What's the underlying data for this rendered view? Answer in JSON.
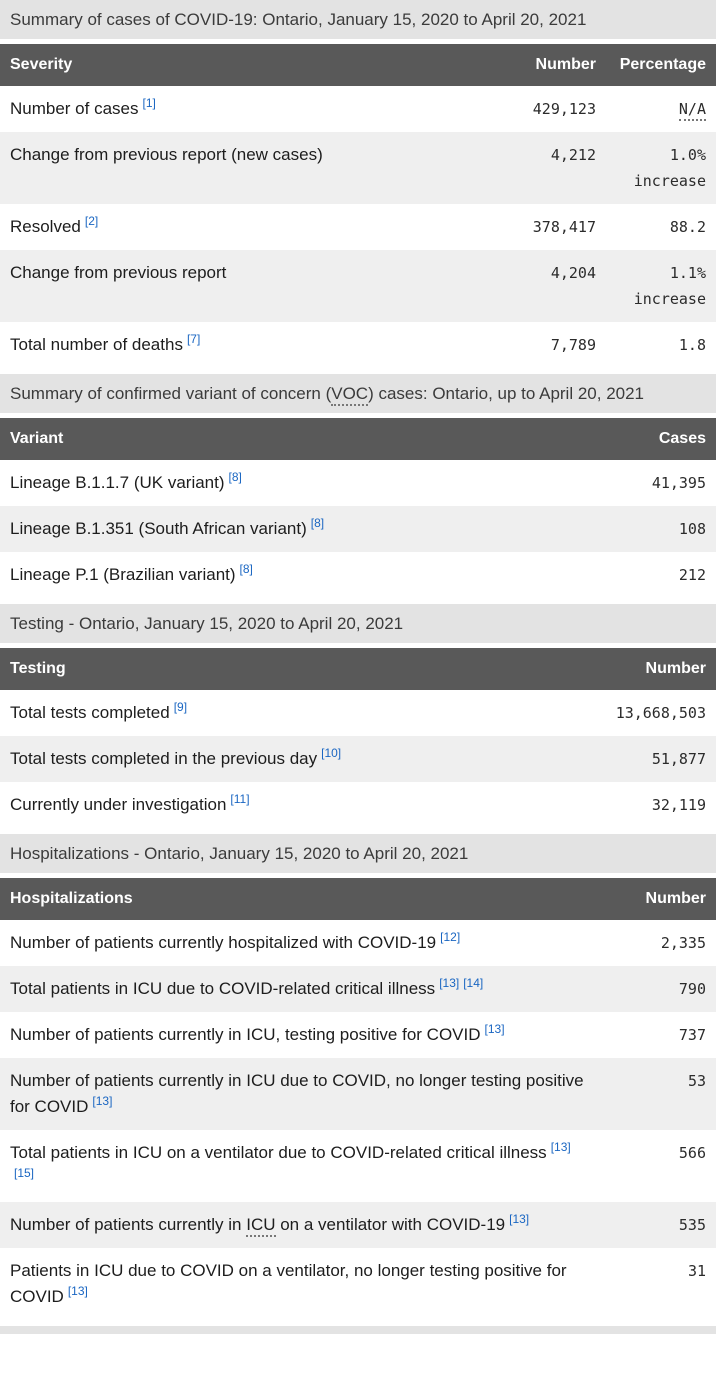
{
  "theme": {
    "header_bg": "#595959",
    "header_text": "#ffffff",
    "caption_bg": "#e3e3e3",
    "zebra_bg": "#efefef",
    "link": "#1a66c2"
  },
  "tables": [
    {
      "name": "cases-summary",
      "caption": [
        {
          "text": "Summary of cases of COVID-19: Ontario, January 15, 2020 to April 20, 2021"
        }
      ],
      "columns": [
        "Severity",
        "Number",
        "Percentage"
      ],
      "rows": [
        {
          "label": [
            {
              "text": "Number of cases"
            }
          ],
          "refs": [
            "[1]"
          ],
          "number": "429,123",
          "percentage": {
            "value": "N/A",
            "abbr": true
          }
        },
        {
          "label": [
            {
              "text": "Change from previous report (new cases)"
            }
          ],
          "refs": [],
          "number": "4,212",
          "percentage": {
            "value": "1.0%",
            "qualifier": "increase"
          }
        },
        {
          "label": [
            {
              "text": "Resolved"
            }
          ],
          "refs": [
            "[2]"
          ],
          "number": "378,417",
          "percentage": {
            "value": "88.2"
          }
        },
        {
          "label": [
            {
              "text": "Change from previous report"
            }
          ],
          "refs": [],
          "number": "4,204",
          "percentage": {
            "value": "1.1%",
            "qualifier": "increase"
          }
        },
        {
          "label": [
            {
              "text": "Total number of deaths"
            }
          ],
          "refs": [
            "[7]"
          ],
          "number": "7,789",
          "percentage": {
            "value": "1.8"
          }
        }
      ]
    },
    {
      "name": "voc-summary",
      "caption": [
        {
          "text": "Summary of confirmed variant of concern ("
        },
        {
          "text": "VOC",
          "abbr": true
        },
        {
          "text": ") cases: Ontario, up to April 20, 2021"
        }
      ],
      "columns": [
        "Variant",
        "Cases"
      ],
      "rows": [
        {
          "label": [
            {
              "text": "Lineage B.1.1.7 (UK variant)"
            }
          ],
          "refs": [
            "[8]"
          ],
          "number": "41,395"
        },
        {
          "label": [
            {
              "text": "Lineage B.1.351 (South African variant)"
            }
          ],
          "refs": [
            "[8]"
          ],
          "number": "108"
        },
        {
          "label": [
            {
              "text": "Lineage P.1 (Brazilian variant)"
            }
          ],
          "refs": [
            "[8]"
          ],
          "number": "212"
        }
      ]
    },
    {
      "name": "testing",
      "caption": [
        {
          "text": "Testing - Ontario, January 15, 2020 to April 20, 2021"
        }
      ],
      "columns": [
        "Testing",
        "Number"
      ],
      "rows": [
        {
          "label": [
            {
              "text": "Total tests completed"
            }
          ],
          "refs": [
            "[9]"
          ],
          "number": "13,668,503"
        },
        {
          "label": [
            {
              "text": "Total tests completed in the previous day"
            }
          ],
          "refs": [
            "[10]"
          ],
          "number": "51,877"
        },
        {
          "label": [
            {
              "text": "Currently under investigation"
            }
          ],
          "refs": [
            "[11]"
          ],
          "number": "32,119"
        }
      ]
    },
    {
      "name": "hospitalizations",
      "caption": [
        {
          "text": "Hospitalizations - Ontario, January 15, 2020 to April 20, 2021"
        }
      ],
      "columns": [
        "Hospitalizations",
        "Number"
      ],
      "rows": [
        {
          "label": [
            {
              "text": "Number of patients currently hospitalized with COVID-19"
            }
          ],
          "refs": [
            "[12]"
          ],
          "number": "2,335"
        },
        {
          "label": [
            {
              "text": "Total patients in ICU due to COVID-related critical illness"
            }
          ],
          "refs": [
            "[13]",
            "[14]"
          ],
          "number": "790"
        },
        {
          "label": [
            {
              "text": "Number of patients currently in ICU, testing positive for COVID"
            }
          ],
          "refs": [
            "[13]"
          ],
          "number": "737"
        },
        {
          "label": [
            {
              "text": "Number of patients currently in ICU due to COVID, no longer testing positive for COVID"
            }
          ],
          "refs": [
            "[13]"
          ],
          "number": "53"
        },
        {
          "label": [
            {
              "text": "Total patients in ICU on a ventilator due to COVID-related critical illness"
            }
          ],
          "refs": [
            "[13]",
            "[15]"
          ],
          "number": "566"
        },
        {
          "label": [
            {
              "text": "Number of patients currently in "
            },
            {
              "text": "ICU",
              "abbr": true
            },
            {
              "text": " on a ventilator with COVID-19"
            }
          ],
          "refs": [
            "[13]"
          ],
          "number": "535"
        },
        {
          "label": [
            {
              "text": "Patients in ICU due to COVID on a ventilator, no longer testing positive for COVID"
            }
          ],
          "refs": [
            "[13]"
          ],
          "number": "31"
        }
      ]
    }
  ]
}
